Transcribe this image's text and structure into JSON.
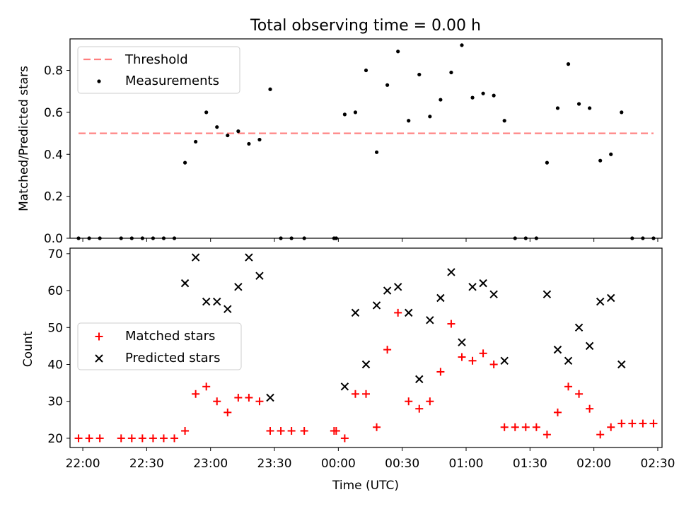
{
  "chart_data": [
    {
      "type": "scatter",
      "title": "Total observing time = 0.00 h",
      "xlabel": "",
      "ylabel": "Matched/Predicted stars",
      "ylim": [
        0,
        0.95
      ],
      "yticks": [
        "0.0",
        "0.2",
        "0.4",
        "0.6",
        "0.8"
      ],
      "legend": {
        "placement": "top-left",
        "threshold_label": "Threshold",
        "measurements_label": "Measurements"
      },
      "threshold": {
        "value": 0.5,
        "x_start": "21:58",
        "x_end": "02:28",
        "color": "#ff7f7f"
      },
      "series": [
        {
          "name": "Measurements",
          "color": "#000000",
          "points": [
            [
              "21:58",
              0.0
            ],
            [
              "22:03",
              0.0
            ],
            [
              "22:08",
              0.0
            ],
            [
              "22:18",
              0.0
            ],
            [
              "22:23",
              0.0
            ],
            [
              "22:28",
              0.0
            ],
            [
              "22:33",
              0.0
            ],
            [
              "22:38",
              0.0
            ],
            [
              "22:43",
              0.0
            ],
            [
              "22:48",
              0.36
            ],
            [
              "22:53",
              0.46
            ],
            [
              "22:58",
              0.6
            ],
            [
              "23:03",
              0.53
            ],
            [
              "23:08",
              0.49
            ],
            [
              "23:13",
              0.51
            ],
            [
              "23:18",
              0.45
            ],
            [
              "23:23",
              0.47
            ],
            [
              "23:28",
              0.71
            ],
            [
              "23:33",
              0.0
            ],
            [
              "23:38",
              0.0
            ],
            [
              "23:44",
              0.0
            ],
            [
              "23:58",
              0.0
            ],
            [
              "23:59",
              0.0
            ],
            [
              "00:03",
              0.59
            ],
            [
              "00:08",
              0.6
            ],
            [
              "00:13",
              0.8
            ],
            [
              "00:18",
              0.41
            ],
            [
              "00:23",
              0.73
            ],
            [
              "00:28",
              0.89
            ],
            [
              "00:33",
              0.56
            ],
            [
              "00:38",
              0.78
            ],
            [
              "00:43",
              0.58
            ],
            [
              "00:48",
              0.66
            ],
            [
              "00:53",
              0.79
            ],
            [
              "00:58",
              0.92
            ],
            [
              "01:03",
              0.67
            ],
            [
              "01:08",
              0.69
            ],
            [
              "01:13",
              0.68
            ],
            [
              "01:18",
              0.56
            ],
            [
              "01:23",
              0.0
            ],
            [
              "01:28",
              0.0
            ],
            [
              "01:33",
              0.0
            ],
            [
              "01:38",
              0.36
            ],
            [
              "01:43",
              0.62
            ],
            [
              "01:48",
              0.83
            ],
            [
              "01:53",
              0.64
            ],
            [
              "01:58",
              0.62
            ],
            [
              "02:03",
              0.37
            ],
            [
              "02:08",
              0.4
            ],
            [
              "02:13",
              0.6
            ],
            [
              "02:18",
              0.0
            ],
            [
              "02:23",
              0.0
            ],
            [
              "02:28",
              0.0
            ]
          ]
        }
      ]
    },
    {
      "type": "scatter",
      "title": "",
      "xlabel": "Time (UTC)",
      "ylabel": "Count",
      "ylim": [
        17.5,
        71.5
      ],
      "yticks": [
        "20",
        "30",
        "40",
        "50",
        "60",
        "70"
      ],
      "legend": {
        "placement": "center-left"
      },
      "series": [
        {
          "name": "Matched stars",
          "marker": "plus",
          "color": "#ff0000",
          "points": [
            [
              "21:58",
              20
            ],
            [
              "22:03",
              20
            ],
            [
              "22:08",
              20
            ],
            [
              "22:18",
              20
            ],
            [
              "22:23",
              20
            ],
            [
              "22:28",
              20
            ],
            [
              "22:33",
              20
            ],
            [
              "22:38",
              20
            ],
            [
              "22:43",
              20
            ],
            [
              "22:48",
              22
            ],
            [
              "22:53",
              32
            ],
            [
              "22:58",
              34
            ],
            [
              "23:03",
              30
            ],
            [
              "23:08",
              27
            ],
            [
              "23:13",
              31
            ],
            [
              "23:18",
              31
            ],
            [
              "23:23",
              30
            ],
            [
              "23:28",
              22
            ],
            [
              "23:33",
              22
            ],
            [
              "23:38",
              22
            ],
            [
              "23:44",
              22
            ],
            [
              "23:58",
              22
            ],
            [
              "23:59",
              22
            ],
            [
              "00:03",
              20
            ],
            [
              "00:08",
              32
            ],
            [
              "00:13",
              32
            ],
            [
              "00:18",
              23
            ],
            [
              "00:23",
              44
            ],
            [
              "00:28",
              54
            ],
            [
              "00:33",
              30
            ],
            [
              "00:38",
              28
            ],
            [
              "00:43",
              30
            ],
            [
              "00:48",
              38
            ],
            [
              "00:53",
              51
            ],
            [
              "00:58",
              42
            ],
            [
              "01:03",
              41
            ],
            [
              "01:08",
              43
            ],
            [
              "01:13",
              40
            ],
            [
              "01:18",
              23
            ],
            [
              "01:23",
              23
            ],
            [
              "01:28",
              23
            ],
            [
              "01:33",
              23
            ],
            [
              "01:38",
              21
            ],
            [
              "01:43",
              27
            ],
            [
              "01:48",
              34
            ],
            [
              "01:53",
              32
            ],
            [
              "01:58",
              28
            ],
            [
              "02:03",
              21
            ],
            [
              "02:08",
              23
            ],
            [
              "02:13",
              24
            ],
            [
              "02:18",
              24
            ],
            [
              "02:23",
              24
            ],
            [
              "02:28",
              24
            ]
          ]
        },
        {
          "name": "Predicted stars",
          "marker": "x",
          "color": "#000000",
          "points": [
            [
              "22:48",
              62
            ],
            [
              "22:53",
              69
            ],
            [
              "22:58",
              57
            ],
            [
              "23:03",
              57
            ],
            [
              "23:08",
              55
            ],
            [
              "23:13",
              61
            ],
            [
              "23:18",
              69
            ],
            [
              "23:23",
              64
            ],
            [
              "23:28",
              31
            ],
            [
              "00:03",
              34
            ],
            [
              "00:08",
              54
            ],
            [
              "00:13",
              40
            ],
            [
              "00:18",
              56
            ],
            [
              "00:23",
              60
            ],
            [
              "00:28",
              61
            ],
            [
              "00:33",
              54
            ],
            [
              "00:38",
              36
            ],
            [
              "00:43",
              52
            ],
            [
              "00:48",
              58
            ],
            [
              "00:53",
              65
            ],
            [
              "00:58",
              46
            ],
            [
              "01:03",
              61
            ],
            [
              "01:08",
              62
            ],
            [
              "01:13",
              59
            ],
            [
              "01:18",
              41
            ],
            [
              "01:38",
              59
            ],
            [
              "01:43",
              44
            ],
            [
              "01:48",
              41
            ],
            [
              "01:53",
              50
            ],
            [
              "01:58",
              45
            ],
            [
              "02:03",
              57
            ],
            [
              "02:08",
              58
            ],
            [
              "02:13",
              40
            ]
          ]
        }
      ]
    }
  ],
  "x_axis": {
    "range": [
      "21:54",
      "02:32"
    ],
    "ticks": [
      "22:00",
      "22:30",
      "23:00",
      "23:30",
      "00:00",
      "00:30",
      "01:00",
      "01:30",
      "02:00",
      "02:30"
    ]
  }
}
